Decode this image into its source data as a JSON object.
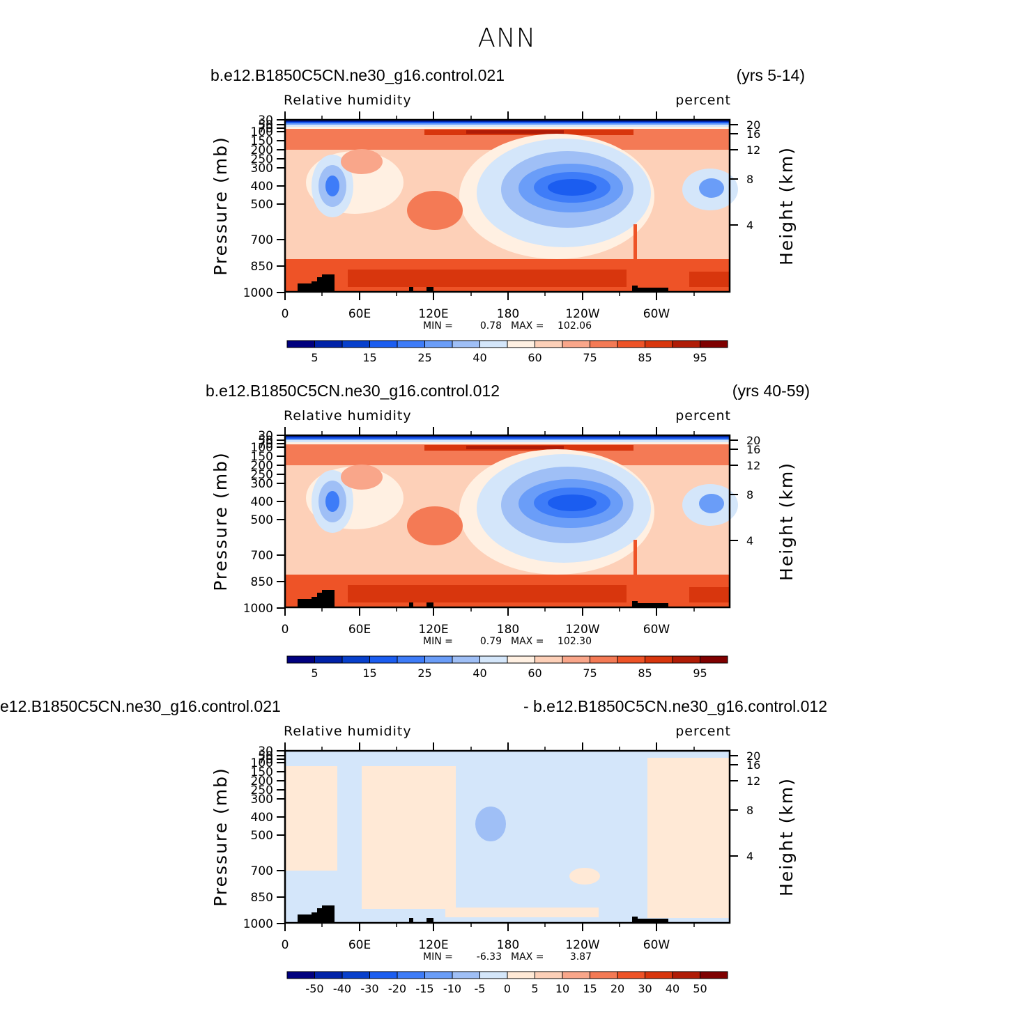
{
  "title": "ANN",
  "panels": [
    {
      "case_label": "b.e12.B1850C5CN.ne30_g16.control.021",
      "years_label": "(yrs 5-14)",
      "variable_label": "Relative humidity",
      "units_label": "percent",
      "stats": {
        "min_label": "MIN =",
        "min": "0.78",
        "max_label": "MAX =",
        "max": "102.06"
      }
    },
    {
      "case_label": "b.e12.B1850C5CN.ne30_g16.control.012",
      "years_label": "(yrs 40-59)",
      "variable_label": "Relative humidity",
      "units_label": "percent",
      "stats": {
        "min_label": "MIN =",
        "min": "0.79",
        "max_label": "MAX =",
        "max": "102.30"
      }
    },
    {
      "case_label": "e12.B1850C5CN.ne30_g16.control.021",
      "years_label": "- b.e12.B1850C5CN.ne30_g16.control.012",
      "variable_label": "Relative humidity",
      "units_label": "percent",
      "stats": {
        "min_label": "MIN =",
        "min": "-6.33",
        "max_label": "MAX =",
        "max": "3.87"
      }
    }
  ],
  "colors": {
    "abs_scale": [
      "#00007f",
      "#0022a8",
      "#0840cc",
      "#1b5df0",
      "#3e7cf8",
      "#6a9df8",
      "#9fbff6",
      "#d4e6fa",
      "#fff0e2",
      "#fdd0b8",
      "#f9a68a",
      "#f47a55",
      "#ee5327",
      "#d8360d",
      "#b01c06",
      "#7f0000"
    ],
    "diff_scale": [
      "#00007f",
      "#0022a8",
      "#0840cc",
      "#1b5df0",
      "#3e7cf8",
      "#6a9df8",
      "#9fbff6",
      "#d4e6fa",
      "#ffe9d6",
      "#fdd0b8",
      "#f9a68a",
      "#f47a55",
      "#ee5327",
      "#d8360d",
      "#b01c06",
      "#7f0000"
    ],
    "land": "#000000"
  },
  "chart_data": [
    {
      "type": "heatmap",
      "title": "Relative humidity",
      "ylabel": "Pressure (mb)",
      "ylabel_right": "Height (km)",
      "x_ticks": [
        "0",
        "60E",
        "120E",
        "180",
        "120W",
        "60W"
      ],
      "x_range_deg": [
        0,
        360
      ],
      "y_ticks": [
        "30",
        "50",
        "70",
        "100",
        "150",
        "200",
        "250",
        "300",
        "400",
        "500",
        "700",
        "850",
        "1000"
      ],
      "y_ticks_right": [
        "20",
        "16",
        "12",
        "8",
        "4"
      ],
      "colorbar_labels": [
        "5",
        "15",
        "25",
        "40",
        "60",
        "75",
        "85",
        "95"
      ],
      "colorbar_levels": [
        5,
        10,
        15,
        20,
        25,
        30,
        40,
        50,
        60,
        70,
        75,
        80,
        85,
        90,
        95
      ],
      "min": 0.78,
      "max": 102.06
    },
    {
      "type": "heatmap",
      "title": "Relative humidity",
      "ylabel": "Pressure (mb)",
      "ylabel_right": "Height (km)",
      "x_ticks": [
        "0",
        "60E",
        "120E",
        "180",
        "120W",
        "60W"
      ],
      "x_range_deg": [
        0,
        360
      ],
      "y_ticks": [
        "30",
        "50",
        "70",
        "100",
        "150",
        "200",
        "250",
        "300",
        "400",
        "500",
        "700",
        "850",
        "1000"
      ],
      "y_ticks_right": [
        "20",
        "16",
        "12",
        "8",
        "4"
      ],
      "colorbar_labels": [
        "5",
        "15",
        "25",
        "40",
        "60",
        "75",
        "85",
        "95"
      ],
      "colorbar_levels": [
        5,
        10,
        15,
        20,
        25,
        30,
        40,
        50,
        60,
        70,
        75,
        80,
        85,
        90,
        95
      ],
      "min": 0.79,
      "max": 102.3
    },
    {
      "type": "heatmap",
      "title": "Relative humidity",
      "ylabel": "Pressure (mb)",
      "ylabel_right": "Height (km)",
      "x_ticks": [
        "0",
        "60E",
        "120E",
        "180",
        "120W",
        "60W"
      ],
      "x_range_deg": [
        0,
        360
      ],
      "y_ticks": [
        "30",
        "50",
        "70",
        "100",
        "150",
        "200",
        "250",
        "300",
        "400",
        "500",
        "700",
        "850",
        "1000"
      ],
      "y_ticks_right": [
        "20",
        "16",
        "12",
        "8",
        "4"
      ],
      "colorbar_labels": [
        "-50",
        "-40",
        "-30",
        "-20",
        "-15",
        "-10",
        "-5",
        "0",
        "5",
        "10",
        "15",
        "20",
        "30",
        "40",
        "50"
      ],
      "colorbar_levels": [
        -50,
        -40,
        -30,
        -20,
        -15,
        -10,
        -5,
        0,
        5,
        10,
        15,
        20,
        30,
        40,
        50
      ],
      "min": -6.33,
      "max": 3.87
    }
  ]
}
